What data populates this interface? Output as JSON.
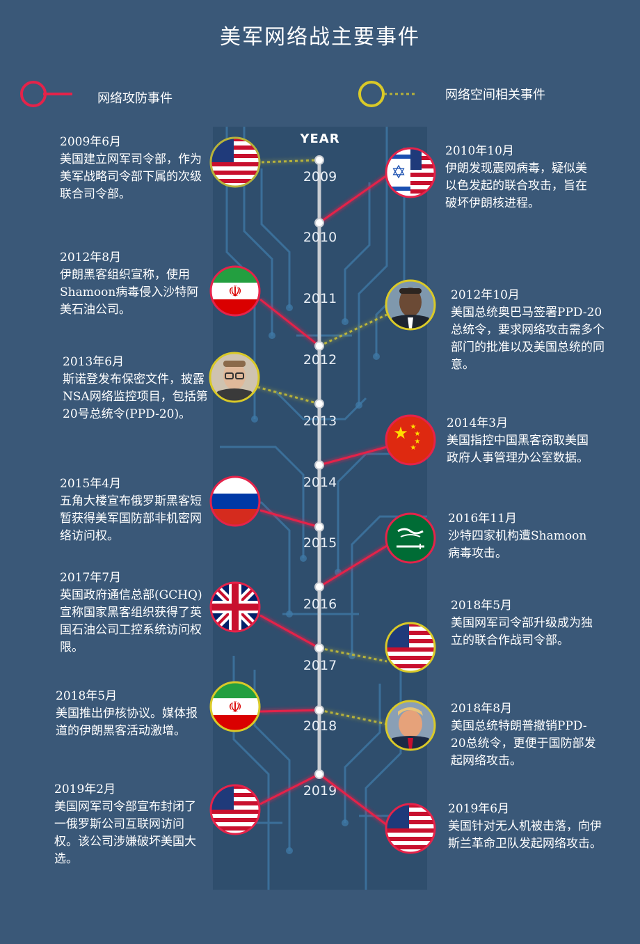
{
  "title": "美军网络战主要事件",
  "legend": {
    "attack_label": "网络攻防事件",
    "cyber_label": "网络空间相关事件",
    "attack_color": "#e4234a",
    "cyber_color": "#d9c928"
  },
  "timeline": {
    "header": "YEAR",
    "years": [
      "2009",
      "2010",
      "2011",
      "2012",
      "2013",
      "2014",
      "2015",
      "2016",
      "2017",
      "2018",
      "2019"
    ]
  },
  "events_left": [
    {
      "date": "2009年6月",
      "desc": "美国建立网军司令部，作为美军战略司令部下属的次级联合司令部。",
      "icon": "us-flag-icon"
    },
    {
      "date": "2012年8月",
      "desc": "伊朗黑客组织宣称，使用Shamoon病毒侵入沙特阿美石油公司。",
      "icon": "iran-flag-icon"
    },
    {
      "date": "2013年6月",
      "desc": "斯诺登发布保密文件，披露NSA网络监控项目，包括第20号总统令(PPD-20)。",
      "icon": "snowden-portrait-icon"
    },
    {
      "date": "2015年4月",
      "desc": "五角大楼宣布俄罗斯黑客短暂获得美军国防部非机密网络访问权。",
      "icon": "russia-flag-icon"
    },
    {
      "date": "2017年7月",
      "desc": "英国政府通信总部(GCHQ)宣称国家黑客组织获得了英国石油公司工控系统访问权限。",
      "icon": "uk-flag-icon"
    },
    {
      "date": "2018年5月",
      "desc": "美国推出伊核协议。媒体报道的伊朗黑客活动激增。",
      "icon": "iran-flag-icon"
    },
    {
      "date": "2019年2月",
      "desc": "美国网军司令部宣布封闭了一俄罗斯公司互联网访问权。该公司涉嫌破坏美国大选。",
      "icon": "us-flag-icon"
    }
  ],
  "events_right": [
    {
      "date": "2010年10月",
      "desc": "伊朗发现震网病毒，疑似美以色发起的联合攻击，旨在破坏伊朗核进程。",
      "icon": "us-israel-flag-icon"
    },
    {
      "date": "2012年10月",
      "desc": "美国总统奥巴马签署PPD-20总统令，要求网络攻击需多个部门的批准以及美国总统的同意。",
      "icon": "obama-portrait-icon"
    },
    {
      "date": "2014年3月",
      "desc": "美国指控中国黑客窃取美国政府人事管理办公室数据。",
      "icon": "china-flag-icon"
    },
    {
      "date": "2016年11月",
      "desc": "沙特四家机构遭Shamoon病毒攻击。",
      "icon": "saudi-flag-icon"
    },
    {
      "date": "2018年5月",
      "desc": "美国网军司令部升级成为独立的联合作战司令部。",
      "icon": "us-flag-icon"
    },
    {
      "date": "2018年8月",
      "desc": "美国总统特朗普撤销PPD-20总统令，更便于国防部发起网络攻击。",
      "icon": "trump-portrait-icon"
    },
    {
      "date": "2019年6月",
      "desc": "美国针对无人机被击落，向伊斯兰革命卫队发起网络攻击。",
      "icon": "us-flag-icon"
    }
  ]
}
